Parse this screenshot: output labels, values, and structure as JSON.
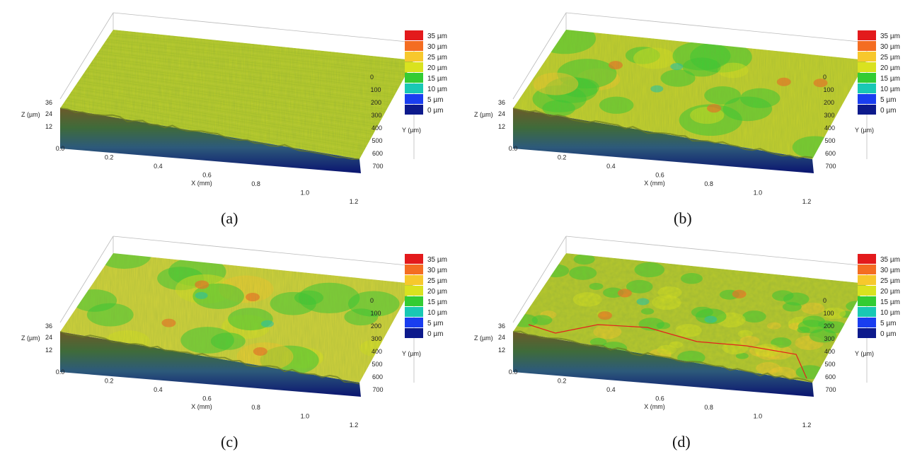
{
  "legend": {
    "entries": [
      "35 µm",
      "30 µm",
      "25 µm",
      "20 µm",
      "15 µm",
      "10 µm",
      "5 µm",
      "0 µm"
    ],
    "colors": [
      "#e31a1c",
      "#f46d22",
      "#f7c82c",
      "#d9e21f",
      "#33cc33",
      "#19c8b4",
      "#1a3ef0",
      "#0d1a8c"
    ]
  },
  "axes": {
    "x_label": "X (mm)",
    "y_label": "Y (µm)",
    "z_label": "Z (µm)",
    "x_ticks": [
      "0.0",
      "0.2",
      "0.4",
      "0.6",
      "0.8",
      "1.0",
      "1.2"
    ],
    "y_ticks": [
      "0",
      "100",
      "200",
      "300",
      "400",
      "500",
      "600",
      "700"
    ],
    "z_ticks": [
      "12",
      "24",
      "36"
    ]
  },
  "panels": [
    {
      "caption": "(a)",
      "surface": "smooth",
      "base_color": "#b9cc2a"
    },
    {
      "caption": "(b)",
      "surface": "wavy",
      "base_color": "#c5d02c"
    },
    {
      "caption": "(c)",
      "surface": "wavy",
      "base_color": "#d2d23a"
    },
    {
      "caption": "(d)",
      "surface": "rough",
      "base_color": "#b7c82c",
      "has_profile_line": true,
      "profile_line_color": "#e3211c"
    }
  ]
}
